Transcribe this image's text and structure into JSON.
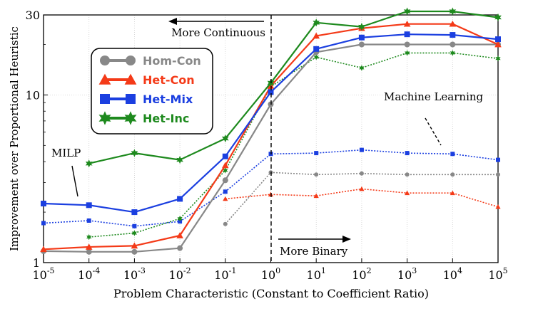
{
  "chart_data": {
    "type": "line",
    "title": "",
    "xlabel": "Problem Characteristic (Constant to Coefficient Ratio)",
    "ylabel": "Improvement over Proportional Heuristic",
    "xscale": "log10",
    "yscale": "log10",
    "xlim_exp": [
      -5,
      5
    ],
    "ylim": [
      1,
      30
    ],
    "x_tick_labels": [
      {
        "base": "10",
        "exp": "-5"
      },
      {
        "base": "10",
        "exp": "-4"
      },
      {
        "base": "10",
        "exp": "-3"
      },
      {
        "base": "10",
        "exp": "-2"
      },
      {
        "base": "10",
        "exp": "-1"
      },
      {
        "base": "10",
        "exp": "0"
      },
      {
        "base": "10",
        "exp": "1"
      },
      {
        "base": "10",
        "exp": "2"
      },
      {
        "base": "10",
        "exp": "3"
      },
      {
        "base": "10",
        "exp": "4"
      },
      {
        "base": "10",
        "exp": "5"
      }
    ],
    "y_ticks": [
      1,
      10,
      30
    ],
    "y_tick_labels": [
      "1",
      "10",
      "30"
    ],
    "vertical_line_at_exp": 0,
    "annotations": {
      "more_continuous": "More Continuous",
      "more_binary": "More Binary",
      "milp": "MILP",
      "machine_learning": "Machine Learning"
    },
    "legend": {
      "position": "upper-left",
      "entries": [
        {
          "label": "Hom-Con",
          "color": "#888888",
          "marker": "circle"
        },
        {
          "label": "Het-Con",
          "color": "#f43a18",
          "marker": "triangle"
        },
        {
          "label": "Het-Mix",
          "color": "#1b3fe0",
          "marker": "square"
        },
        {
          "label": "Het-Inc",
          "color": "#1e8a1e",
          "marker": "star"
        }
      ]
    },
    "series": [
      {
        "name": "Hom-Con (MILP)",
        "group": "MILP",
        "style": "solid",
        "color": "#888888",
        "marker": "circle",
        "x_exp": [
          -5,
          -4,
          -3,
          -2,
          -1,
          0,
          1,
          2,
          3,
          4,
          5
        ],
        "y": [
          1.17,
          1.16,
          1.16,
          1.22,
          3.1,
          8.8,
          18,
          20,
          20,
          20,
          20
        ]
      },
      {
        "name": "Het-Con (MILP)",
        "group": "MILP",
        "style": "solid",
        "color": "#f43a18",
        "marker": "triangle",
        "x_exp": [
          -5,
          -4,
          -3,
          -2,
          -1,
          0,
          1,
          2,
          3,
          4,
          5
        ],
        "y": [
          1.2,
          1.24,
          1.26,
          1.45,
          3.8,
          11.3,
          22.5,
          25,
          26.5,
          26.5,
          20
        ]
      },
      {
        "name": "Het-Mix (MILP)",
        "group": "MILP",
        "style": "solid",
        "color": "#1b3fe0",
        "marker": "square",
        "x_exp": [
          -5,
          -4,
          -3,
          -2,
          -1,
          0,
          1,
          2,
          3,
          4,
          5
        ],
        "y": [
          2.25,
          2.2,
          2.0,
          2.4,
          4.3,
          10.4,
          18.8,
          22,
          23,
          22.8,
          21.5
        ]
      },
      {
        "name": "Het-Inc (MILP)",
        "group": "MILP",
        "style": "solid",
        "color": "#1e8a1e",
        "marker": "star",
        "x_exp": [
          -4,
          -3,
          -2,
          -1,
          0,
          1,
          2,
          3,
          4,
          5
        ],
        "y": [
          3.9,
          4.5,
          4.1,
          5.5,
          11.8,
          27,
          25.5,
          31.5,
          31.5,
          29
        ]
      },
      {
        "name": "Hom-Con (Machine Learning)",
        "group": "Machine Learning",
        "style": "dotted",
        "color": "#888888",
        "marker": "circle",
        "x_exp": [
          -1,
          0,
          1,
          2,
          3,
          4,
          5
        ],
        "y": [
          1.7,
          3.45,
          3.35,
          3.4,
          3.35,
          3.35,
          3.35
        ]
      },
      {
        "name": "Het-Con (Machine Learning)",
        "group": "Machine Learning",
        "style": "dotted",
        "color": "#f43a18",
        "marker": "triangle",
        "x_exp": [
          -1,
          0,
          1,
          2,
          3,
          4,
          5
        ],
        "y": [
          2.4,
          2.55,
          2.5,
          2.75,
          2.6,
          2.6,
          2.15
        ]
      },
      {
        "name": "Het-Mix (Machine Learning)",
        "group": "Machine Learning",
        "style": "dotted",
        "color": "#1b3fe0",
        "marker": "square",
        "x_exp": [
          -5,
          -4,
          -3,
          -2,
          -1,
          0,
          1,
          2,
          3,
          4,
          5
        ],
        "y": [
          1.72,
          1.78,
          1.65,
          1.76,
          2.65,
          4.45,
          4.5,
          4.7,
          4.5,
          4.45,
          4.1
        ]
      },
      {
        "name": "Het-Inc (Machine Learning)",
        "group": "Machine Learning",
        "style": "dotted",
        "color": "#1e8a1e",
        "marker": "star",
        "x_exp": [
          -4,
          -3,
          -2,
          -1,
          0,
          1,
          2,
          3,
          4,
          5
        ],
        "y": [
          1.42,
          1.5,
          1.83,
          3.55,
          11.2,
          16.8,
          14.5,
          17.8,
          17.8,
          16.5
        ]
      }
    ]
  }
}
